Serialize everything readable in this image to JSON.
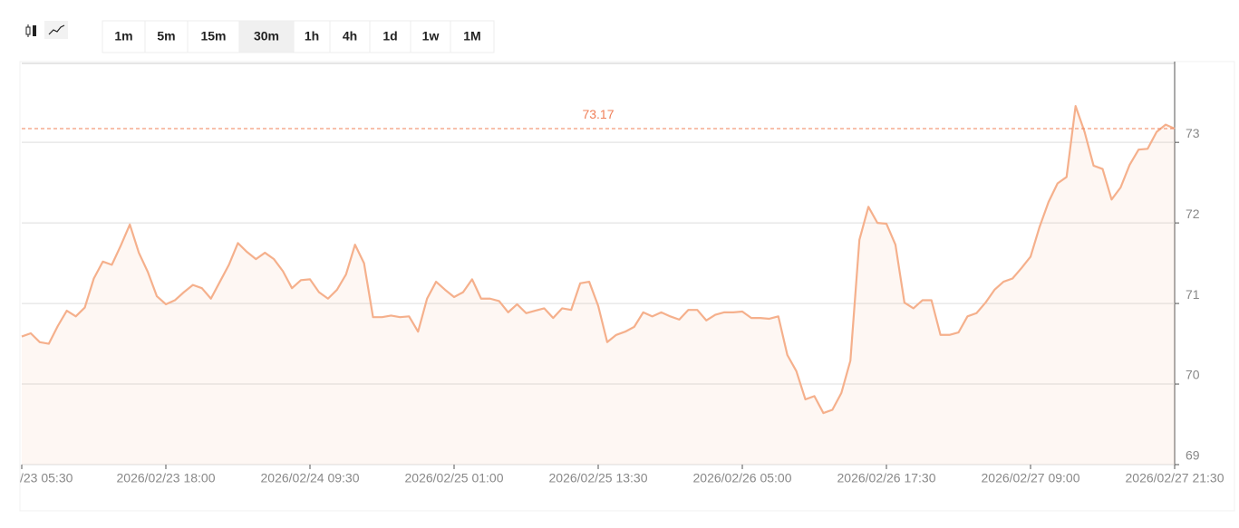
{
  "toolbar": {
    "intervals": [
      "1m",
      "5m",
      "15m",
      "30m",
      "1h",
      "4h",
      "1d",
      "1w",
      "1M"
    ],
    "active": "30m"
  },
  "chart_data": {
    "type": "line",
    "categories": [
      "/23 05:30",
      null,
      null,
      null,
      null,
      null,
      null,
      null,
      null,
      null,
      null,
      null,
      null,
      null,
      null,
      null,
      "2026/02/23 18:00",
      null,
      null,
      null,
      null,
      null,
      null,
      null,
      null,
      null,
      null,
      null,
      null,
      null,
      null,
      null,
      "2026/02/24 09:30",
      null,
      null,
      null,
      null,
      null,
      null,
      null,
      null,
      null,
      null,
      null,
      null,
      null,
      null,
      null,
      "2026/02/25 01:00",
      null,
      null,
      null,
      null,
      null,
      null,
      null,
      null,
      null,
      null,
      null,
      null,
      null,
      null,
      null,
      "2026/02/25 13:30",
      null,
      null,
      null,
      null,
      null,
      null,
      null,
      null,
      null,
      null,
      null,
      null,
      null,
      null,
      null,
      "2026/02/26 05:00",
      null,
      null,
      null,
      null,
      null,
      null,
      null,
      null,
      null,
      null,
      null,
      null,
      null,
      null,
      null,
      "2026/02/26 17:30",
      null,
      null,
      null,
      null,
      null,
      null,
      null,
      null,
      null,
      null,
      null,
      null,
      null,
      null,
      null,
      "2026/02/27 09:00",
      null,
      null,
      null,
      null,
      null,
      null,
      null,
      null,
      null,
      null,
      null,
      null,
      null,
      null,
      null,
      "2026/02/27 21:30"
    ],
    "series": [
      {
        "color": "#f5b08c",
        "values": [
          70.59,
          70.63,
          70.52,
          70.5,
          70.72,
          70.91,
          70.84,
          70.95,
          71.31,
          71.52,
          71.48,
          71.72,
          71.98,
          71.63,
          71.39,
          71.09,
          70.99,
          71.04,
          71.14,
          71.23,
          71.19,
          71.06,
          71.27,
          71.48,
          71.75,
          71.64,
          71.55,
          71.63,
          71.55,
          71.4,
          71.19,
          71.29,
          71.3,
          71.14,
          71.06,
          71.17,
          71.36,
          71.73,
          71.5,
          70.83,
          70.83,
          70.85,
          70.83,
          70.84,
          70.65,
          71.06,
          71.27,
          71.17,
          71.08,
          71.14,
          71.3,
          71.06,
          71.06,
          71.03,
          70.89,
          70.99,
          70.88,
          70.91,
          70.94,
          70.82,
          70.94,
          70.92,
          71.25,
          71.27,
          70.97,
          70.52,
          70.61,
          70.65,
          70.71,
          70.89,
          70.84,
          70.89,
          70.84,
          70.8,
          70.92,
          70.92,
          70.79,
          70.86,
          70.89,
          70.89,
          70.9,
          70.82,
          70.82,
          70.81,
          70.84,
          70.36,
          70.16,
          69.81,
          69.85,
          69.64,
          69.68,
          69.89,
          70.29,
          71.79,
          72.2,
          72.0,
          71.99,
          71.73,
          71.01,
          70.94,
          71.04,
          71.04,
          70.61,
          70.61,
          70.64,
          70.84,
          70.88,
          71.01,
          71.17,
          71.27,
          71.31,
          71.44,
          71.58,
          71.95,
          72.26,
          72.49,
          72.57,
          73.45,
          73.13,
          72.71,
          72.67,
          72.29,
          72.44,
          72.72,
          72.91,
          72.92,
          73.13,
          73.22,
          73.17
        ]
      }
    ],
    "ylim": [
      69,
      73.98
    ],
    "yticks": [
      69,
      70,
      71,
      72,
      73
    ],
    "y_axis_position": "right",
    "grid": true,
    "reference_line": {
      "value": 73.17,
      "color": "#f0805a"
    }
  }
}
